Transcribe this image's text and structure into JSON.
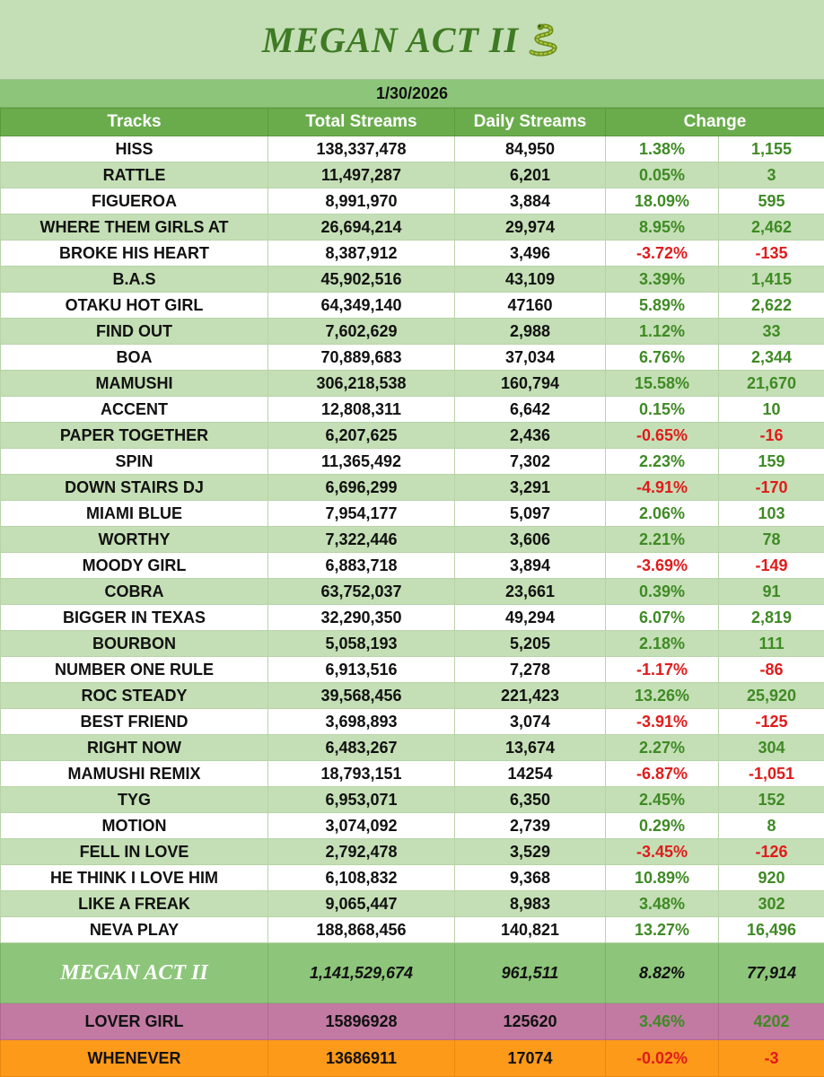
{
  "title": "MEGAN ACT II",
  "title_icon": "snake-icon",
  "date": "1/30/2026",
  "headers": [
    "Tracks",
    "Total Streams",
    "Daily Streams",
    "Change"
  ],
  "rows": [
    {
      "track": "HISS",
      "total": "138,337,478",
      "daily": "84,950",
      "pct": "1.38%",
      "chg": "1,155",
      "neg": false
    },
    {
      "track": "RATTLE",
      "total": "11,497,287",
      "daily": "6,201",
      "pct": "0.05%",
      "chg": "3",
      "neg": false
    },
    {
      "track": "FIGUEROA",
      "total": "8,991,970",
      "daily": "3,884",
      "pct": "18.09%",
      "chg": "595",
      "neg": false
    },
    {
      "track": "WHERE THEM GIRLS AT",
      "total": "26,694,214",
      "daily": "29,974",
      "pct": "8.95%",
      "chg": "2,462",
      "neg": false
    },
    {
      "track": "BROKE HIS HEART",
      "total": "8,387,912",
      "daily": "3,496",
      "pct": "-3.72%",
      "chg": "-135",
      "neg": true
    },
    {
      "track": "B.A.S",
      "total": "45,902,516",
      "daily": "43,109",
      "pct": "3.39%",
      "chg": "1,415",
      "neg": false
    },
    {
      "track": "OTAKU HOT GIRL",
      "total": "64,349,140",
      "daily": "47160",
      "pct": "5.89%",
      "chg": "2,622",
      "neg": false
    },
    {
      "track": "FIND OUT",
      "total": "7,602,629",
      "daily": "2,988",
      "pct": "1.12%",
      "chg": "33",
      "neg": false
    },
    {
      "track": "BOA",
      "total": "70,889,683",
      "daily": "37,034",
      "pct": "6.76%",
      "chg": "2,344",
      "neg": false
    },
    {
      "track": "MAMUSHI",
      "total": "306,218,538",
      "daily": "160,794",
      "pct": "15.58%",
      "chg": "21,670",
      "neg": false
    },
    {
      "track": "ACCENT",
      "total": "12,808,311",
      "daily": "6,642",
      "pct": "0.15%",
      "chg": "10",
      "neg": false
    },
    {
      "track": "PAPER TOGETHER",
      "total": "6,207,625",
      "daily": "2,436",
      "pct": "-0.65%",
      "chg": "-16",
      "neg": true
    },
    {
      "track": "SPIN",
      "total": "11,365,492",
      "daily": "7,302",
      "pct": "2.23%",
      "chg": "159",
      "neg": false
    },
    {
      "track": "DOWN STAIRS DJ",
      "total": "6,696,299",
      "daily": "3,291",
      "pct": "-4.91%",
      "chg": "-170",
      "neg": true
    },
    {
      "track": "MIAMI BLUE",
      "total": "7,954,177",
      "daily": "5,097",
      "pct": "2.06%",
      "chg": "103",
      "neg": false
    },
    {
      "track": "WORTHY",
      "total": "7,322,446",
      "daily": "3,606",
      "pct": "2.21%",
      "chg": "78",
      "neg": false
    },
    {
      "track": "MOODY GIRL",
      "total": "6,883,718",
      "daily": "3,894",
      "pct": "-3.69%",
      "chg": "-149",
      "neg": true
    },
    {
      "track": "COBRA",
      "total": "63,752,037",
      "daily": "23,661",
      "pct": "0.39%",
      "chg": "91",
      "neg": false
    },
    {
      "track": "BIGGER IN TEXAS",
      "total": "32,290,350",
      "daily": "49,294",
      "pct": "6.07%",
      "chg": "2,819",
      "neg": false
    },
    {
      "track": "BOURBON",
      "total": "5,058,193",
      "daily": "5,205",
      "pct": "2.18%",
      "chg": "111",
      "neg": false
    },
    {
      "track": "NUMBER ONE RULE",
      "total": "6,913,516",
      "daily": "7,278",
      "pct": "-1.17%",
      "chg": "-86",
      "neg": true
    },
    {
      "track": "ROC STEADY",
      "total": "39,568,456",
      "daily": "221,423",
      "pct": "13.26%",
      "chg": "25,920",
      "neg": false
    },
    {
      "track": "BEST FRIEND",
      "total": "3,698,893",
      "daily": "3,074",
      "pct": "-3.91%",
      "chg": "-125",
      "neg": true
    },
    {
      "track": "RIGHT NOW",
      "total": "6,483,267",
      "daily": "13,674",
      "pct": "2.27%",
      "chg": "304",
      "neg": false
    },
    {
      "track": "MAMUSHI REMIX",
      "total": "18,793,151",
      "daily": "14254",
      "pct": "-6.87%",
      "chg": "-1,051",
      "neg": true
    },
    {
      "track": "TYG",
      "total": "6,953,071",
      "daily": "6,350",
      "pct": "2.45%",
      "chg": "152",
      "neg": false
    },
    {
      "track": "MOTION",
      "total": "3,074,092",
      "daily": "2,739",
      "pct": "0.29%",
      "chg": "8",
      "neg": false
    },
    {
      "track": "FELL IN LOVE",
      "total": "2,792,478",
      "daily": "3,529",
      "pct": "-3.45%",
      "chg": "-126",
      "neg": true
    },
    {
      "track": "HE THINK I LOVE HIM",
      "total": "6,108,832",
      "daily": "9,368",
      "pct": "10.89%",
      "chg": "920",
      "neg": false
    },
    {
      "track": "LIKE A FREAK",
      "total": "9,065,447",
      "daily": "8,983",
      "pct": "3.48%",
      "chg": "302",
      "neg": false
    },
    {
      "track": "NEVA PLAY",
      "total": "188,868,456",
      "daily": "140,821",
      "pct": "13.27%",
      "chg": "16,496",
      "neg": false
    }
  ],
  "total": {
    "name": "MEGAN ACT II",
    "total": "1,141,529,674",
    "daily": "961,511",
    "pct": "8.82%",
    "chg": "77,914"
  },
  "extras": [
    {
      "track": "LOVER GIRL",
      "total": "15896928",
      "daily": "125620",
      "pct": "3.46%",
      "chg": "4202",
      "neg": false
    },
    {
      "track": "WHENEVER",
      "total": "13686911",
      "daily": "17074",
      "pct": "-0.02%",
      "chg": "-3",
      "neg": true
    }
  ],
  "colors": {
    "header_green": "#6aac4c",
    "row_green": "#c4dfb5",
    "positive": "#3f8a25",
    "negative": "#e01b1b",
    "lover_pink": "#c27aa3",
    "whenever_orange": "#fd9a1a"
  }
}
